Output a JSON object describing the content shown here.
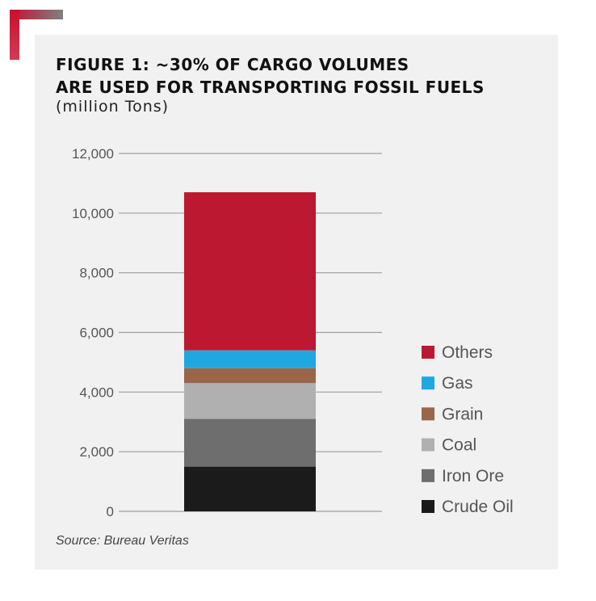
{
  "figure": {
    "title_line1": "FIGURE 1: ~30% OF CARGO VOLUMES",
    "title_line2": "ARE USED FOR TRANSPORTING FOSSIL FUELS",
    "subtitle": "(million Tons)",
    "source": "Source: Bureau Veritas"
  },
  "colors": {
    "card_background": "#f1f1f1",
    "corner_accent": "#c8102e",
    "gridline": "#9e9e9e",
    "tick_text": "#555555",
    "legend_text": "#555555"
  },
  "chart_data": {
    "type": "bar",
    "stacked": true,
    "title": "FIGURE 1: ~30% OF CARGO VOLUMES ARE USED FOR TRANSPORTING FOSSIL FUELS",
    "subtitle": "(million Tons)",
    "xlabel": "",
    "ylabel": "",
    "ylim": [
      0,
      12000
    ],
    "yticks": [
      0,
      2000,
      4000,
      6000,
      8000,
      10000,
      12000
    ],
    "ytick_labels": [
      "0",
      "2,000",
      "4,000",
      "6,000",
      "8,000",
      "10,000",
      "12,000"
    ],
    "grid": true,
    "legend_position": "right",
    "categories": [
      ""
    ],
    "series": [
      {
        "name": "Crude Oil",
        "values": [
          1500
        ],
        "color": "#1b1b1b"
      },
      {
        "name": "Iron Ore",
        "values": [
          1600
        ],
        "color": "#6e6e6e"
      },
      {
        "name": "Coal",
        "values": [
          1200
        ],
        "color": "#b0b0b0"
      },
      {
        "name": "Grain",
        "values": [
          500
        ],
        "color": "#9a6549"
      },
      {
        "name": "Gas",
        "values": [
          600
        ],
        "color": "#1fa7e2"
      },
      {
        "name": "Others",
        "values": [
          5300
        ],
        "color": "#bd1832"
      }
    ],
    "legend_order": [
      "Others",
      "Gas",
      "Grain",
      "Coal",
      "Iron Ore",
      "Crude Oil"
    ]
  }
}
